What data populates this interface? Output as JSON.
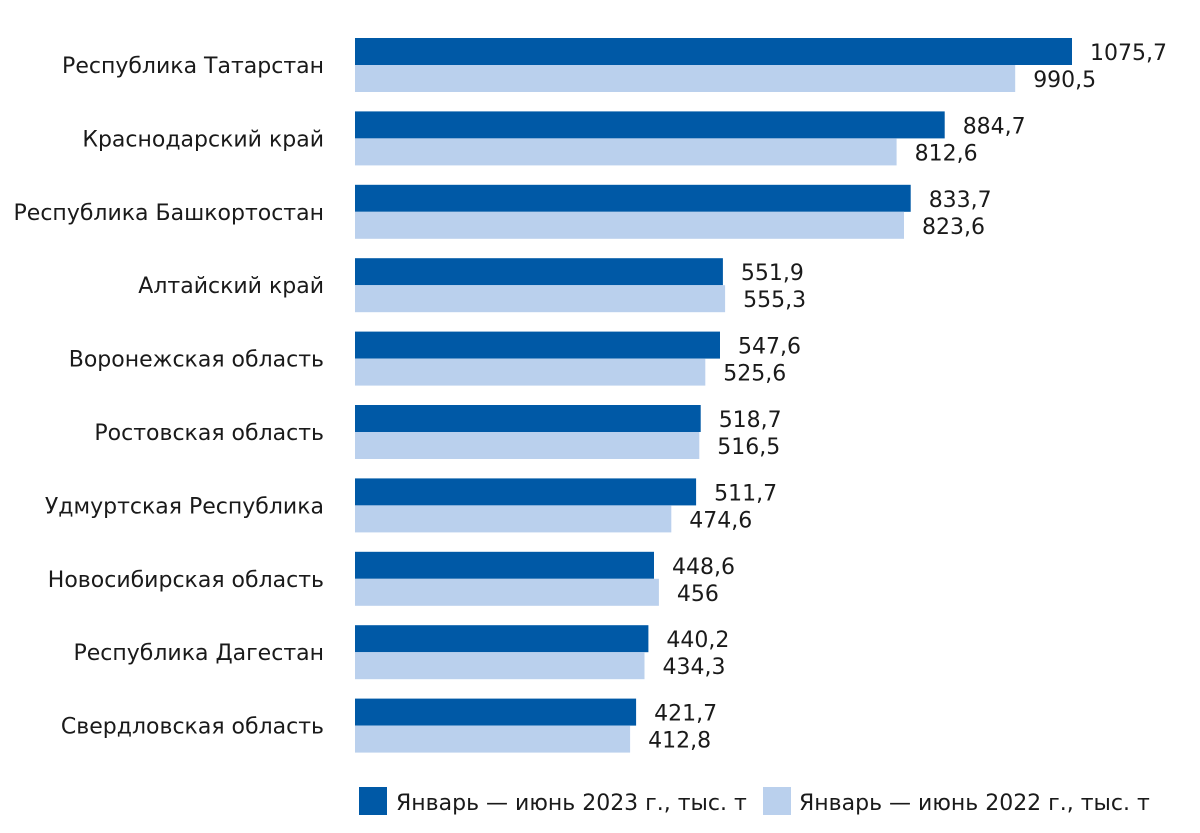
{
  "chart_data": {
    "type": "bar",
    "orientation": "horizontal",
    "categories": [
      "Республика Татарстан",
      "Краснодарский край",
      "Республика Башкортостан",
      "Алтайский край",
      "Воронежская область",
      "Ростовская область",
      "Удмуртская Республика",
      "Новосибирская область",
      "Республика Дагестан",
      "Свердловская область"
    ],
    "series": [
      {
        "name": "Январь — июнь 2023 г., тыс. т",
        "color": "#0059a6",
        "values": [
          1075.7,
          884.7,
          833.7,
          551.9,
          547.6,
          518.7,
          511.7,
          448.6,
          440.2,
          421.7
        ],
        "labels": [
          "1075,7",
          "884,7",
          "833,7",
          "551,9",
          "547,6",
          "518,7",
          "511,7",
          "448,6",
          "440,2",
          "421,7"
        ]
      },
      {
        "name": "Январь — июнь 2022 г., тыс. т",
        "color": "#bad0ed",
        "values": [
          990.5,
          812.6,
          823.6,
          555.3,
          525.6,
          516.5,
          474.6,
          456,
          434.3,
          412.8
        ],
        "labels": [
          "990,5",
          "812,6",
          "823,6",
          "555,3",
          "525,6",
          "516,5",
          "474,6",
          "456",
          "434,3",
          "412,8"
        ]
      }
    ],
    "xlim": [
      0,
      1075.7
    ],
    "grid": false,
    "legend_position": "bottom"
  }
}
